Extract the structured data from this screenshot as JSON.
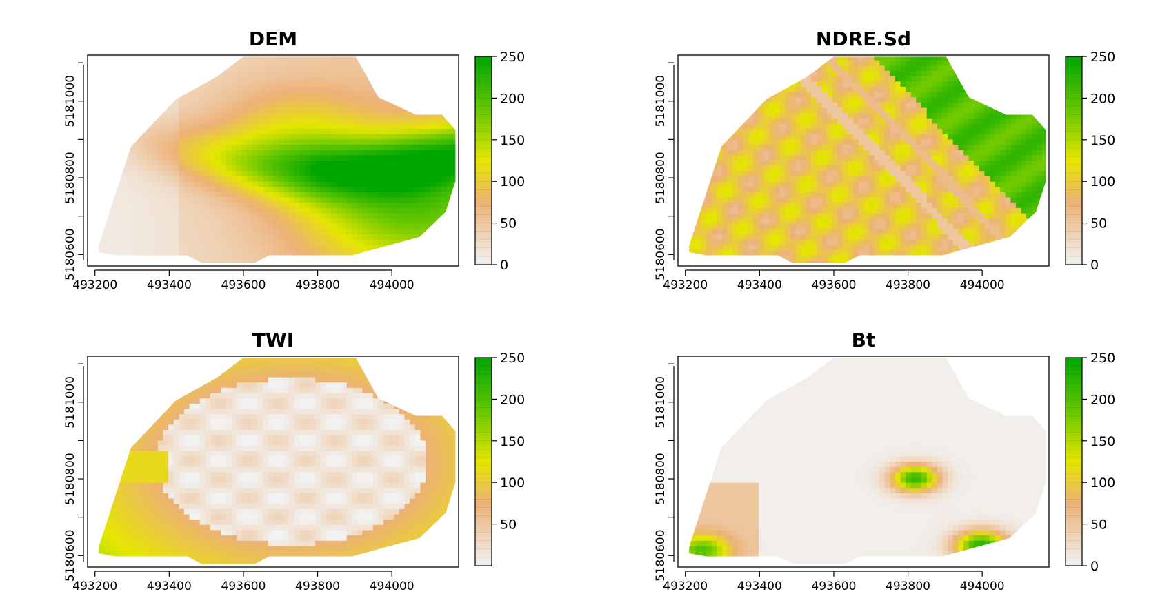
{
  "chart_data": [
    {
      "type": "heatmap",
      "title": "DEM",
      "x_ticks": [
        493200,
        493400,
        493600,
        493800,
        494000
      ],
      "y_ticks": [
        5180600,
        5180800,
        5181000
      ],
      "xlim": [
        493180,
        494180
      ],
      "ylim": [
        5180570,
        5181120
      ],
      "legend": {
        "placement": "right",
        "ticks": [
          0,
          50,
          100,
          150,
          200,
          250
        ],
        "range": [
          0,
          250
        ]
      },
      "palette": [
        "#f2f2f2",
        "#ecb176",
        "#e6e600",
        "#63c600",
        "#00a600"
      ],
      "description_pattern": "s-shaped-ridge"
    },
    {
      "type": "heatmap",
      "title": "NDRE.Sd",
      "x_ticks": [
        493200,
        493400,
        493600,
        493800,
        494000
      ],
      "y_ticks": [
        5180600,
        5180800,
        5181000
      ],
      "xlim": [
        493180,
        494180
      ],
      "ylim": [
        5180570,
        5181120
      ],
      "legend": {
        "placement": "right",
        "ticks": [
          0,
          50,
          100,
          150,
          200,
          250
        ],
        "range": [
          0,
          250
        ]
      },
      "palette": [
        "#f2f2f2",
        "#ecb176",
        "#e6e600",
        "#63c600",
        "#00a600"
      ],
      "description_pattern": "striped-green-east"
    },
    {
      "type": "heatmap",
      "title": "TWI",
      "x_ticks": [
        493200,
        493400,
        493600,
        493800,
        494000
      ],
      "y_ticks": [
        5180600,
        5180800,
        5181000
      ],
      "xlim": [
        493180,
        494180
      ],
      "ylim": [
        5180570,
        5181120
      ],
      "legend": {
        "placement": "right",
        "ticks": [
          50,
          100,
          150,
          200,
          250
        ],
        "range": [
          0,
          250
        ]
      },
      "palette": [
        "#f2f2f2",
        "#ecb176",
        "#e6e600",
        "#63c600",
        "#00a600"
      ],
      "description_pattern": "pale-interior-orange-rim"
    },
    {
      "type": "heatmap",
      "title": "Bt",
      "x_ticks": [
        493200,
        493400,
        493600,
        493800,
        494000
      ],
      "y_ticks": [
        5180600,
        5180800,
        5181000
      ],
      "xlim": [
        493180,
        494180
      ],
      "ylim": [
        5180570,
        5181120
      ],
      "legend": {
        "placement": "right",
        "ticks": [
          0,
          50,
          100,
          150,
          200,
          250
        ],
        "range": [
          0,
          250
        ]
      },
      "palette": [
        "#f2f2f2",
        "#ecb176",
        "#e6e600",
        "#63c600",
        "#00a600"
      ],
      "description_pattern": "two-hotspots"
    }
  ]
}
